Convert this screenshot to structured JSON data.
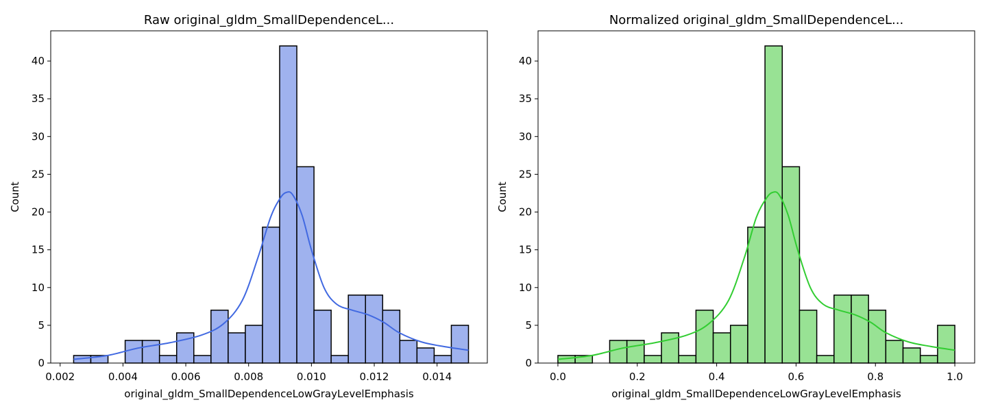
{
  "chart_data": [
    {
      "type": "bar",
      "title": "Raw original_gldm_SmallDependenceL...",
      "xlabel": "original_gldm_SmallDependenceLowGrayLevelEmphasis",
      "ylabel": "Count",
      "xlim": [
        0.0017,
        0.0156
      ],
      "ylim": [
        0,
        44
      ],
      "xticks": [
        0.002,
        0.004,
        0.006,
        0.008,
        0.01,
        0.012,
        0.014
      ],
      "xtick_labels": [
        "0.002",
        "0.004",
        "0.006",
        "0.008",
        "0.010",
        "0.012",
        "0.014"
      ],
      "yticks": [
        0,
        5,
        10,
        15,
        20,
        25,
        30,
        35,
        40
      ],
      "ytick_labels": [
        "0",
        "5",
        "10",
        "15",
        "20",
        "25",
        "30",
        "35",
        "40"
      ],
      "bin_start": 0.00243,
      "bin_end": 0.015,
      "values": [
        1,
        1,
        0,
        3,
        3,
        1,
        4,
        1,
        7,
        4,
        5,
        18,
        42,
        26,
        7,
        1,
        9,
        9,
        7,
        3,
        2,
        1,
        5
      ],
      "bar_color": "#9fb2ee",
      "kde_color": "#4169e1",
      "kde": {
        "x": [
          0.00243,
          0.0035,
          0.0045,
          0.0055,
          0.0065,
          0.0072,
          0.0078,
          0.0083,
          0.0087,
          0.009,
          0.0092,
          0.0094,
          0.0097,
          0.01,
          0.0104,
          0.0108,
          0.0113,
          0.0118,
          0.0123,
          0.0128,
          0.0135,
          0.0142,
          0.015
        ],
        "y": [
          0.5,
          1.0,
          2.0,
          2.7,
          3.7,
          5.2,
          8.3,
          14.0,
          19.3,
          21.8,
          22.6,
          22.3,
          19.6,
          15.0,
          10.0,
          7.8,
          7.0,
          6.4,
          5.4,
          4.0,
          2.8,
          2.2,
          1.7
        ]
      }
    },
    {
      "type": "bar",
      "title": "Normalized original_gldm_SmallDependenceL...",
      "xlabel": "original_gldm_SmallDependenceLowGrayLevelEmphasis",
      "ylabel": "Count",
      "xlim": [
        -0.05,
        1.05
      ],
      "ylim": [
        0,
        44
      ],
      "xticks": [
        0.0,
        0.2,
        0.4,
        0.6,
        0.8,
        1.0
      ],
      "xtick_labels": [
        "0.0",
        "0.2",
        "0.4",
        "0.6",
        "0.8",
        "1.0"
      ],
      "yticks": [
        0,
        5,
        10,
        15,
        20,
        25,
        30,
        35,
        40
      ],
      "ytick_labels": [
        "0",
        "5",
        "10",
        "15",
        "20",
        "25",
        "30",
        "35",
        "40"
      ],
      "bin_start": 0.0,
      "bin_end": 1.0,
      "values": [
        1,
        1,
        0,
        3,
        3,
        1,
        4,
        1,
        7,
        4,
        5,
        18,
        42,
        26,
        7,
        1,
        9,
        9,
        7,
        3,
        2,
        1,
        5
      ],
      "bar_color": "#98e294",
      "kde_color": "#32cd32",
      "kde": {
        "x": [
          0.0,
          0.085,
          0.165,
          0.245,
          0.325,
          0.38,
          0.43,
          0.47,
          0.5,
          0.525,
          0.541,
          0.557,
          0.58,
          0.604,
          0.636,
          0.668,
          0.708,
          0.748,
          0.788,
          0.827,
          0.883,
          0.939,
          1.0
        ],
        "y": [
          0.5,
          1.0,
          2.0,
          2.7,
          3.7,
          5.2,
          8.3,
          14.0,
          19.3,
          21.8,
          22.6,
          22.3,
          19.6,
          15.0,
          10.0,
          7.8,
          7.0,
          6.4,
          5.4,
          4.0,
          2.8,
          2.2,
          1.7
        ]
      }
    }
  ]
}
